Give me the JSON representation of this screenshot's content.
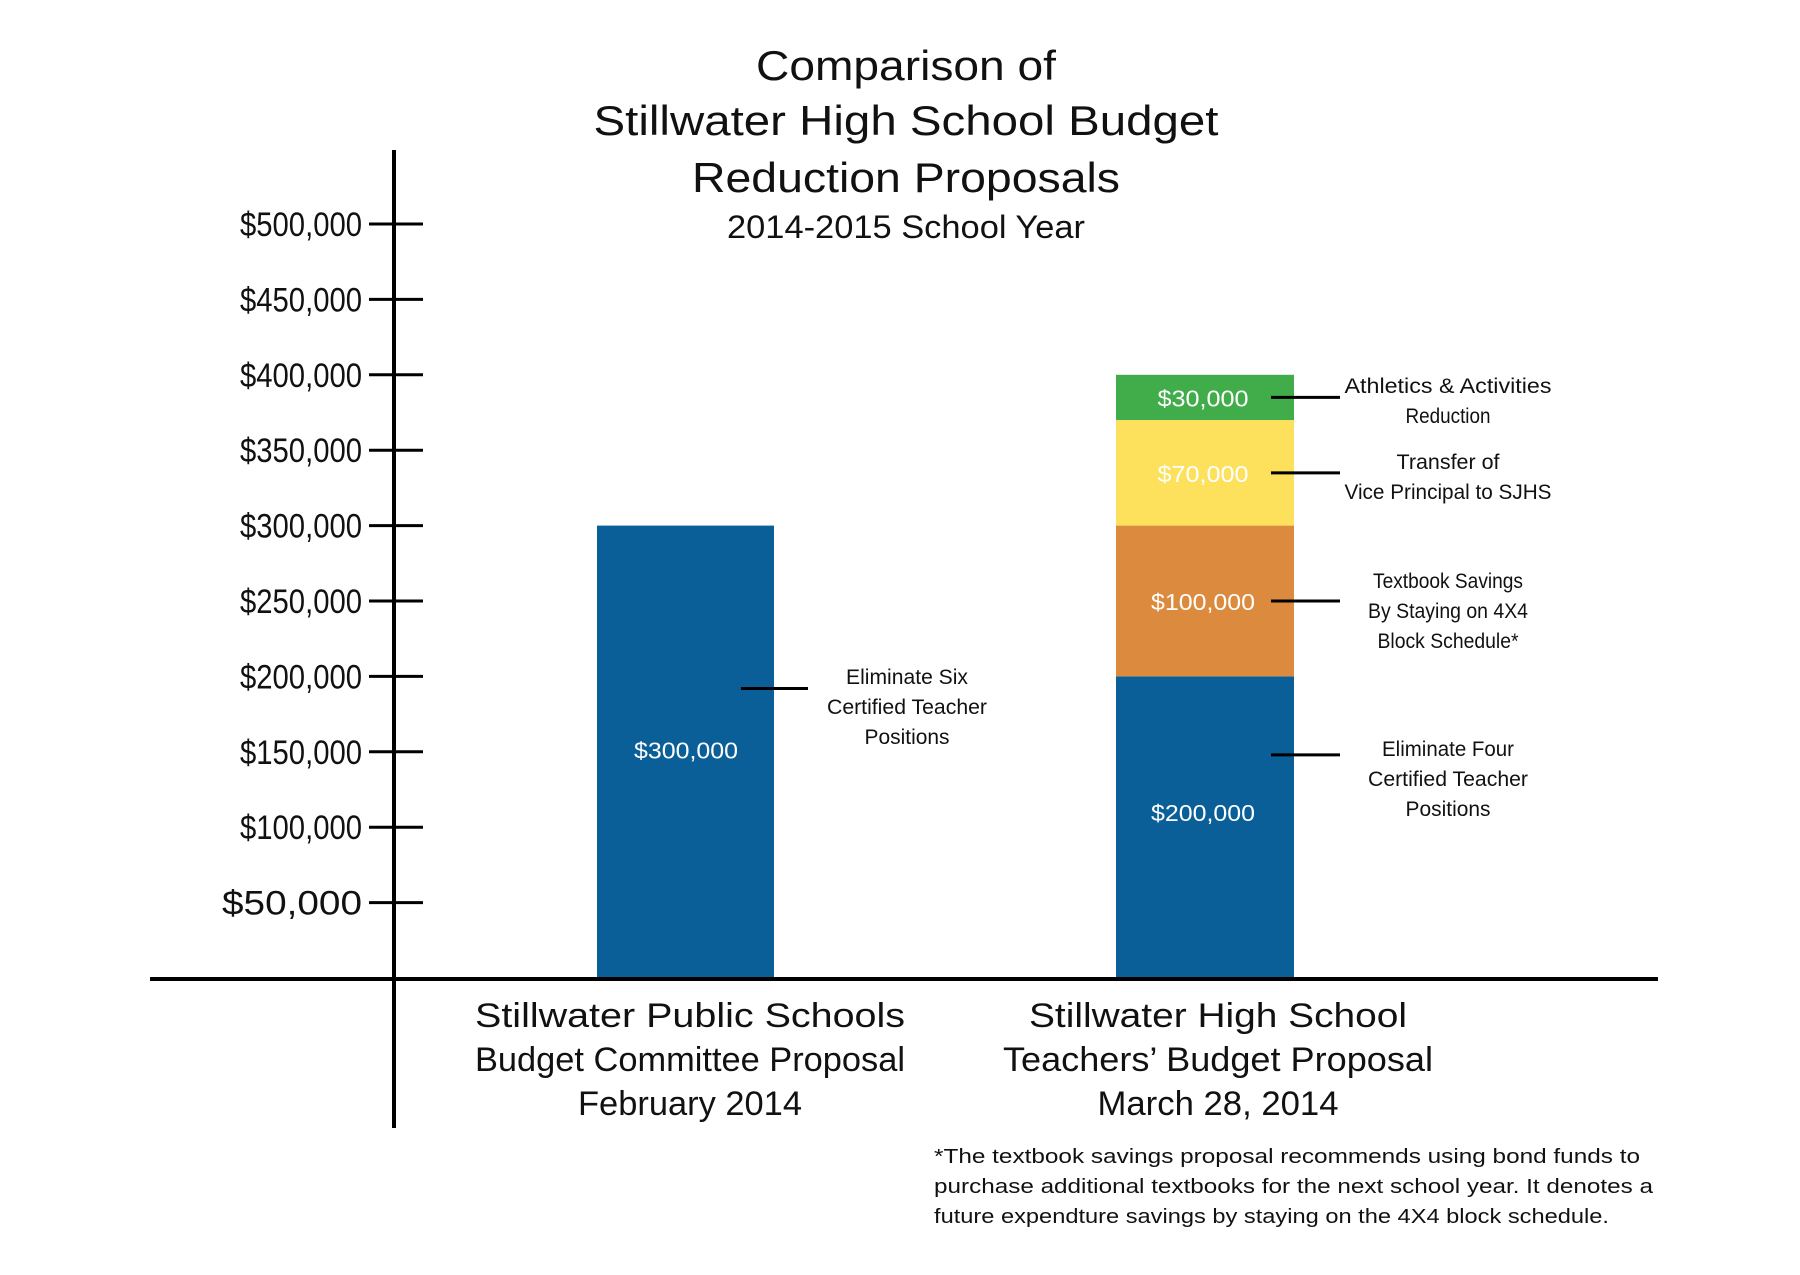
{
  "chart_data": {
    "type": "bar",
    "stacked": true,
    "title": "Comparison of Stillwater High School Budget Reduction Proposals",
    "title_lines": [
      "Comparison of",
      "Stillwater High School Budget",
      "Reduction Proposals"
    ],
    "subtitle": "2014-2015 School Year",
    "xlabel": "",
    "ylabel": "",
    "ylim": [
      0,
      500000
    ],
    "grid": false,
    "legend": "none",
    "y_ticks": [
      {
        "value": 500000,
        "label": "$500,000"
      },
      {
        "value": 450000,
        "label": "$450,000"
      },
      {
        "value": 400000,
        "label": "$400,000"
      },
      {
        "value": 350000,
        "label": "$350,000"
      },
      {
        "value": 300000,
        "label": "$300,000"
      },
      {
        "value": 250000,
        "label": "$250,000"
      },
      {
        "value": 200000,
        "label": "$200,000"
      },
      {
        "value": 150000,
        "label": "$150,000"
      },
      {
        "value": 100000,
        "label": "$100,000"
      },
      {
        "value": 50000,
        "label": "$50,000"
      }
    ],
    "categories": [
      {
        "name": "Stillwater Public Schools Budget Committee Proposal February 2014",
        "label_lines": [
          "Stillwater Public Schools",
          "Budget Committee Proposal",
          "February 2014"
        ],
        "segments": [
          {
            "value": 300000,
            "value_label": "$300,000",
            "color": "#0a5f99",
            "annotation_lines": [
              "Eliminate Six",
              "Certified Teacher",
              "Positions"
            ]
          }
        ]
      },
      {
        "name": "Stillwater High School Teachers' Budget Proposal March 28, 2014",
        "label_lines": [
          "Stillwater High School",
          "Teachers’ Budget Proposal",
          "March 28, 2014"
        ],
        "segments": [
          {
            "value": 200000,
            "value_label": "$200,000",
            "color": "#0a5f99",
            "annotation_lines": [
              "Eliminate Four",
              "Certified Teacher",
              "Positions"
            ]
          },
          {
            "value": 100000,
            "value_label": "$100,000",
            "color": "#dc8a3e",
            "annotation_lines": [
              "Textbook Savings",
              "By Staying on 4X4",
              "Block Schedule*"
            ]
          },
          {
            "value": 70000,
            "value_label": "$70,000",
            "color": "#fde05b",
            "annotation_lines": [
              "Transfer of",
              "Vice Principal to SJHS"
            ]
          },
          {
            "value": 30000,
            "value_label": "$30,000",
            "color": "#41ad4a",
            "annotation_lines": [
              "Athletics & Activities",
              "Reduction"
            ]
          }
        ]
      }
    ],
    "totals": [
      300000,
      400000
    ],
    "footnote_lines": [
      "*The textbook savings proposal recommends using bond funds to",
      "purchase additional textbooks for the next school year. It denotes a",
      "future expendture savings by staying on the 4X4 block schedule."
    ]
  }
}
